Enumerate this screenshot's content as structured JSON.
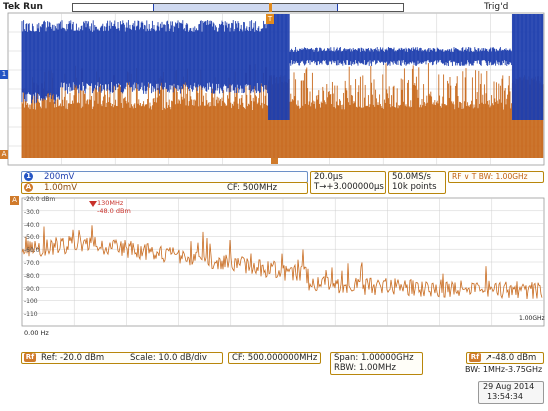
{
  "header": {
    "status": "Tek Run",
    "trigger_status": "Trig'd"
  },
  "time_waveform": {
    "ch1_marker": "1",
    "ch2_marker": "A",
    "trigger_marker": "T",
    "trigger_mark": "1",
    "colors": {
      "ch1": "#1f3fae",
      "ch2": "#c86a1e",
      "grid": "#cfcfcf"
    }
  },
  "channels": [
    {
      "chip": "1",
      "scale": "200mV",
      "color": "#2455c4"
    },
    {
      "chip": "A",
      "scale": "1.00mV",
      "color": "#d07a2a"
    }
  ],
  "cf_label": "CF:  500MHz",
  "timebase": {
    "per_div": "20.0µs",
    "delay": "T→+3.000000µs"
  },
  "acquisition": {
    "rate": "50.0MS/s",
    "record": "10k points"
  },
  "rf_trigger": "RF ∨ T BW: 1.00GHz",
  "spectrum": {
    "chip": "A",
    "y_axis": [
      "-20.0 dBm",
      "-30.0",
      "-40.0",
      "-50.0",
      "-60.0",
      "-70.0",
      "-80.0",
      "-90.0",
      "-100",
      "-110"
    ],
    "x_start": "0.00 Hz",
    "x_end": "1.00GHz",
    "marker_freq": "130MHz",
    "marker_level": "-48.0 dBm",
    "ref": "Ref: -20.0 dBm",
    "scale": "Scale: 10.0 dB/div",
    "cf": "CF: 500.000000MHz",
    "span": "Span:   1.00000GHz",
    "rbw": "RBW:     1.00MHz",
    "rf_trigger_level": "↗-48.0 dBm",
    "rf_badge": "Rf",
    "bw": "BW: 1MHz-3.75GHz",
    "color": "#c86a1e"
  },
  "footer": {
    "date": "29 Aug 2014",
    "time": "13:54:34"
  }
}
